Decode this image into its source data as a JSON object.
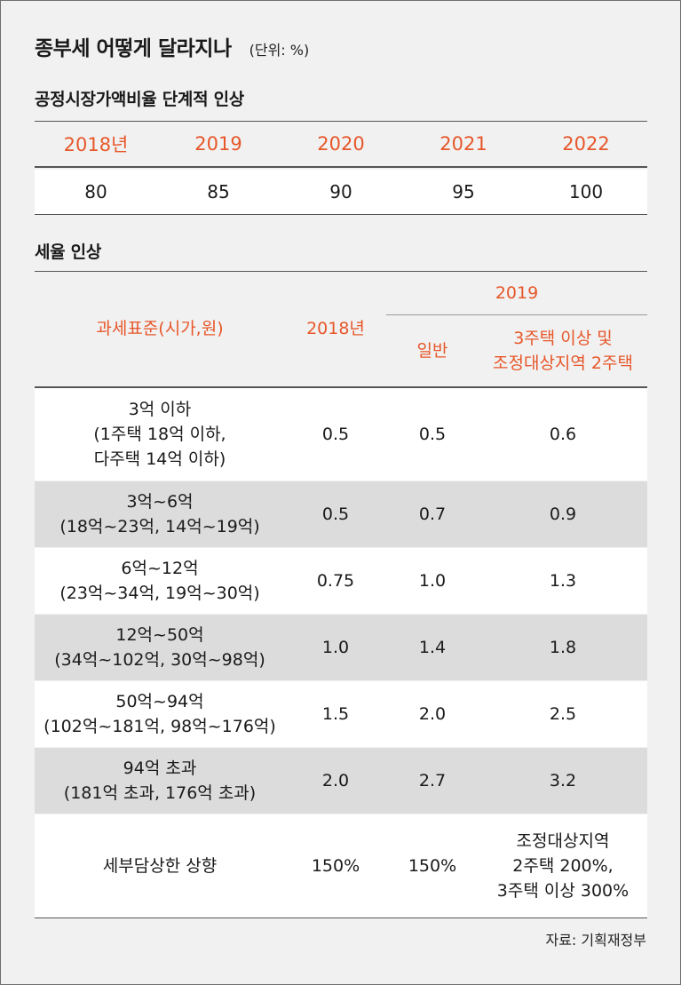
{
  "title": "종부세 어떻게 달라지나",
  "unit": "(단위: %)",
  "section1": {
    "heading": "공정시장가액비율 단계적 인상",
    "years": [
      "2018년",
      "2019",
      "2020",
      "2021",
      "2022"
    ],
    "values": [
      "80",
      "85",
      "90",
      "95",
      "100"
    ]
  },
  "section2": {
    "heading": "세율 인상",
    "header": {
      "base": "과세표준(시가,원)",
      "y2018": "2018년",
      "y2019": "2019",
      "general": "일반",
      "multi_line1": "3주택 이상 및",
      "multi_line2": "조정대상지역 2주택"
    },
    "rows": [
      {
        "base": [
          "3억 이하",
          "(1주택 18억 이하,",
          "다주택 14억 이하)"
        ],
        "y2018": "0.5",
        "general": "0.5",
        "multi": "0.6"
      },
      {
        "base": [
          "3억~6억",
          "(18억~23억, 14억~19억)"
        ],
        "y2018": "0.5",
        "general": "0.7",
        "multi": "0.9"
      },
      {
        "base": [
          "6억~12억",
          "(23억~34억, 19억~30억)"
        ],
        "y2018": "0.75",
        "general": "1.0",
        "multi": "1.3"
      },
      {
        "base": [
          "12억~50억",
          "(34억~102억, 30억~98억)"
        ],
        "y2018": "1.0",
        "general": "1.4",
        "multi": "1.8"
      },
      {
        "base": [
          "50억~94억",
          "(102억~181억, 98억~176억)"
        ],
        "y2018": "1.5",
        "general": "2.0",
        "multi": "2.5"
      },
      {
        "base": [
          "94억 초과",
          "(181억 초과, 176억 초과)"
        ],
        "y2018": "2.0",
        "general": "2.7",
        "multi": "3.2"
      }
    ],
    "cap": {
      "label": "세부담상한 상향",
      "y2018": "150%",
      "general": "150%",
      "multi": [
        "조정대상지역",
        "2주택 200%,",
        "3주택 이상 300%"
      ]
    }
  },
  "source": "자료: 기획재정부",
  "colors": {
    "accent": "#e7572a",
    "shade": "#dcdcdc",
    "background": "#f1f1f1"
  }
}
